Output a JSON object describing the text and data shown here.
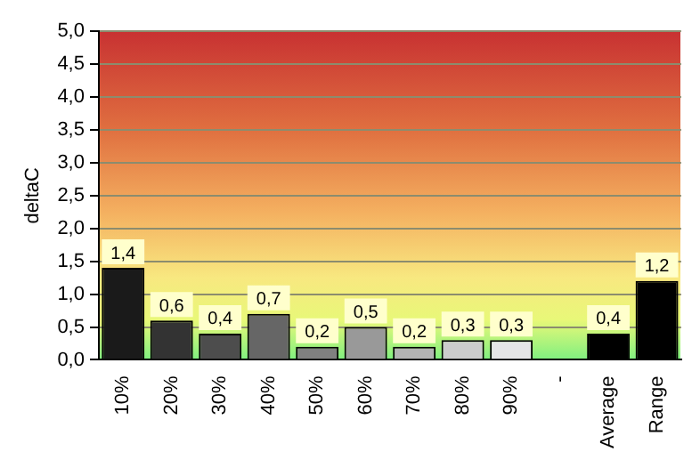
{
  "chart_data": {
    "type": "bar",
    "ylabel": "deltaC",
    "categories": [
      "10%",
      "20%",
      "30%",
      "40%",
      "50%",
      "60%",
      "70%",
      "80%",
      "90%",
      "-",
      "Average",
      "Range"
    ],
    "values": [
      1.4,
      0.6,
      0.4,
      0.7,
      0.2,
      0.5,
      0.2,
      0.3,
      0.3,
      null,
      0.4,
      1.2
    ],
    "colors": [
      "#1a1a1a",
      "#333333",
      "#4d4d4d",
      "#666666",
      "#808080",
      "#999999",
      "#b3b3b3",
      "#cccccc",
      "#e6e6e6",
      "#000000",
      "#000000",
      "#000000"
    ],
    "value_labels": [
      "1,4",
      "0,6",
      "0,4",
      "0,7",
      "0,2",
      "0,5",
      "0,2",
      "0,3",
      "0,3",
      null,
      "0,4",
      "1,2"
    ],
    "ylim": [
      0,
      5
    ],
    "yticks": [
      {
        "value": 0,
        "label": "0,0"
      },
      {
        "value": 0.5,
        "label": "0,5"
      },
      {
        "value": 1,
        "label": "1,0"
      },
      {
        "value": 1.5,
        "label": "1,5"
      },
      {
        "value": 2,
        "label": "2,0"
      },
      {
        "value": 2.5,
        "label": "2,5"
      },
      {
        "value": 3,
        "label": "3,0"
      },
      {
        "value": 3.5,
        "label": "3,5"
      },
      {
        "value": 4,
        "label": "4,0"
      },
      {
        "value": 4.5,
        "label": "4,5"
      },
      {
        "value": 5,
        "label": "5,0"
      }
    ],
    "grid": "y",
    "legend": false
  }
}
